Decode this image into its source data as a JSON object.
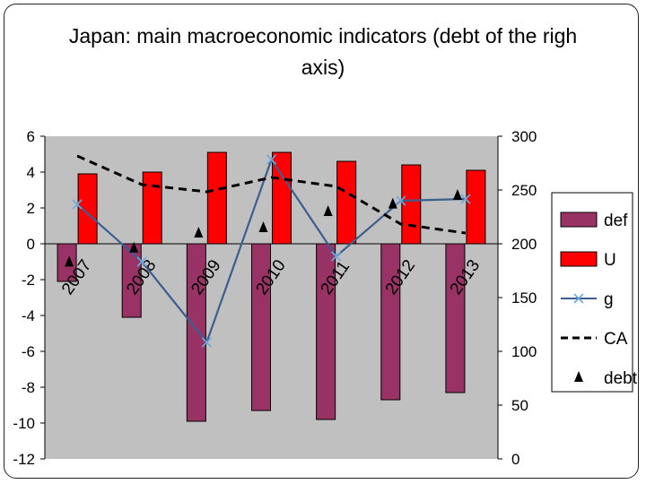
{
  "chart_data": {
    "type": "bar",
    "title": "Japan: main macroeconomic indicators (debt of the righ axis)",
    "title_lines": [
      "Japan: main macroeconomic indicators (debt of the righ",
      "axis)"
    ],
    "categories": [
      "2007",
      "2008",
      "2009",
      "2010",
      "2011",
      "2012",
      "2013"
    ],
    "ylim_left": [
      -12,
      6
    ],
    "yticks_left": [
      6,
      4,
      2,
      0,
      -2,
      -4,
      -6,
      -8,
      -10,
      -12
    ],
    "ylim_right": [
      0,
      300
    ],
    "yticks_right": [
      300,
      250,
      200,
      150,
      100,
      50,
      0
    ],
    "plot_background": "#c0c0c0",
    "series": [
      {
        "name": "def",
        "type": "bar",
        "axis": "left",
        "color": "#993366",
        "values": [
          -2.1,
          -4.1,
          -9.9,
          -9.3,
          -9.8,
          -8.7,
          -8.3
        ]
      },
      {
        "name": "U",
        "type": "bar",
        "axis": "left",
        "color": "#ff0000",
        "values": [
          3.9,
          4.0,
          5.1,
          5.1,
          4.6,
          4.4,
          4.1
        ]
      },
      {
        "name": "g",
        "type": "line",
        "axis": "left",
        "color": "#3a5f8f",
        "marker": "x",
        "values": [
          2.2,
          -1.0,
          -5.5,
          4.7,
          -0.7,
          2.4,
          2.5
        ]
      },
      {
        "name": "CA",
        "type": "line",
        "axis": "left",
        "color": "#000000",
        "style": "dashed",
        "values": [
          4.9,
          3.3,
          2.9,
          3.7,
          3.2,
          1.1,
          0.6
        ]
      },
      {
        "name": "debt",
        "type": "marker",
        "axis": "right",
        "color": "#000000",
        "marker": "triangle",
        "values": [
          183,
          196,
          210,
          215,
          230,
          237,
          245
        ]
      }
    ],
    "legend_position": "right"
  }
}
